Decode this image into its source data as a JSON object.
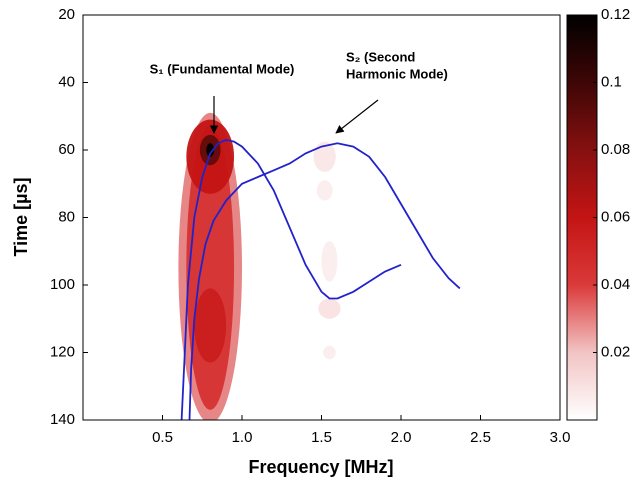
{
  "chart_data": {
    "type": "contour",
    "xlabel": "Frequency [MHz]",
    "ylabel": "Time [µs]",
    "xlim": [
      0,
      3.0
    ],
    "xticks": [
      0.5,
      {
        "value": 1,
        "label": "1.0"
      },
      1.5,
      {
        "value": 2,
        "label": "2.0"
      },
      2.5,
      {
        "value": 3,
        "label": "3.0"
      }
    ],
    "ylim": [
      20,
      140
    ],
    "yticks": [
      20,
      40,
      60,
      80,
      100,
      120,
      140
    ],
    "y_inverted": true,
    "clim": [
      0,
      0.12
    ],
    "cticks": [
      0.02,
      0.04,
      0.06,
      0.08,
      0.1,
      0.12
    ],
    "colormap": [
      "#ffffff",
      "#f2c4c4",
      "#da3a3a",
      "#c41414",
      "#861010",
      "#3e0606",
      "#000000"
    ],
    "blobs": [
      {
        "x": 0.8,
        "y": 95,
        "w": 0.4,
        "h": 92,
        "value": 0.03
      },
      {
        "x": 0.8,
        "y": 95,
        "w": 0.3,
        "h": 84,
        "value": 0.045
      },
      {
        "x": 0.8,
        "y": 62,
        "w": 0.3,
        "h": 22,
        "value": 0.06
      },
      {
        "x": 0.8,
        "y": 112,
        "w": 0.2,
        "h": 22,
        "value": 0.055
      },
      {
        "x": 0.8,
        "y": 60,
        "w": 0.13,
        "h": 9,
        "value": 0.09
      },
      {
        "x": 0.8,
        "y": 60,
        "w": 0.05,
        "h": 4,
        "value": 0.12
      },
      {
        "x": 1.52,
        "y": 62,
        "w": 0.14,
        "h": 9,
        "value": 0.008
      },
      {
        "x": 1.52,
        "y": 72,
        "w": 0.1,
        "h": 6,
        "value": 0.006
      },
      {
        "x": 1.55,
        "y": 93,
        "w": 0.1,
        "h": 12,
        "value": 0.006
      },
      {
        "x": 1.55,
        "y": 107,
        "w": 0.14,
        "h": 6,
        "value": 0.01
      },
      {
        "x": 1.55,
        "y": 120,
        "w": 0.08,
        "h": 4,
        "value": 0.006
      }
    ],
    "series": [
      {
        "name": "S1",
        "color": "#2222cc",
        "x": [
          0.62,
          0.64,
          0.66,
          0.7,
          0.75,
          0.8,
          0.85,
          0.9,
          0.95,
          1.0,
          1.1,
          1.2,
          1.3,
          1.4,
          1.5,
          1.55,
          1.6,
          1.7,
          1.8,
          1.9,
          2.0
        ],
        "values": [
          140,
          120,
          100,
          80,
          68,
          61,
          58,
          57,
          57.5,
          59,
          64,
          72,
          83,
          94,
          102,
          104,
          104,
          102,
          99,
          96,
          94
        ]
      },
      {
        "name": "S2",
        "color": "#2222cc",
        "x": [
          0.67,
          0.68,
          0.7,
          0.73,
          0.77,
          0.82,
          0.9,
          1.0,
          1.1,
          1.2,
          1.3,
          1.4,
          1.5,
          1.6,
          1.7,
          1.8,
          1.9,
          2.0,
          2.1,
          2.2,
          2.3,
          2.37
        ],
        "values": [
          140,
          125,
          110,
          98,
          88,
          81,
          75,
          70,
          68,
          66,
          64,
          61,
          59,
          58,
          59,
          62,
          68,
          76,
          84,
          92,
          98,
          101
        ]
      }
    ],
    "annotations": [
      {
        "lines": [
          "S₁ (Fundamental Mode)"
        ]
      },
      {
        "lines": [
          "S₂ (Second",
          "Harmonic Mode)"
        ]
      }
    ]
  }
}
